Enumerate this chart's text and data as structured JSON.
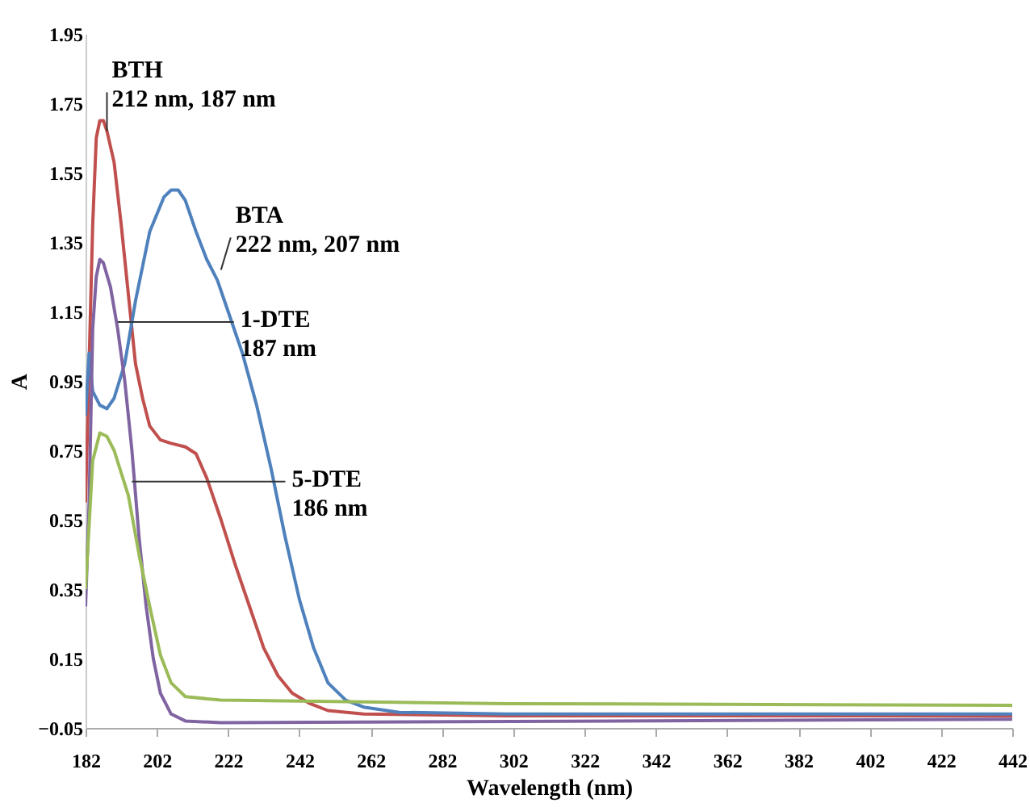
{
  "chart_data": {
    "type": "line",
    "xlabel": "Wavelength (nm)",
    "ylabel": "A",
    "xlim": [
      182,
      442
    ],
    "xticks": [
      182,
      202,
      222,
      242,
      262,
      282,
      302,
      322,
      342,
      362,
      382,
      402,
      422,
      442
    ],
    "ylim": [
      -0.05,
      1.95
    ],
    "yticks": [
      -0.05,
      0.15,
      0.35,
      0.55,
      0.75,
      0.95,
      1.15,
      1.35,
      1.55,
      1.75,
      1.95
    ],
    "grid": false,
    "marker": "none",
    "line_style": "solid",
    "series": [
      {
        "color": "#c0504d",
        "x": [
          182,
          184,
          185,
          186,
          187,
          188,
          190,
          192,
          194,
          196,
          198,
          200,
          203,
          206,
          210,
          213,
          216,
          220,
          224,
          228,
          232,
          236,
          240,
          245,
          250,
          260,
          300,
          442
        ],
        "values": [
          0.6,
          1.4,
          1.65,
          1.7,
          1.7,
          1.67,
          1.58,
          1.4,
          1.2,
          1.0,
          0.9,
          0.82,
          0.78,
          0.77,
          0.76,
          0.74,
          0.67,
          0.55,
          0.42,
          0.3,
          0.18,
          0.1,
          0.05,
          0.02,
          0.0,
          -0.01,
          -0.015,
          -0.015
        ]
      },
      {
        "color": "#4f81bd",
        "x": [
          182,
          183,
          184,
          186,
          188,
          190,
          193,
          196,
          200,
          204,
          206,
          208,
          210,
          213,
          216,
          219,
          222,
          226,
          230,
          234,
          238,
          242,
          246,
          250,
          255,
          260,
          270,
          300,
          442
        ],
        "values": [
          0.85,
          1.03,
          0.92,
          0.88,
          0.87,
          0.9,
          1.0,
          1.18,
          1.38,
          1.48,
          1.5,
          1.5,
          1.47,
          1.38,
          1.3,
          1.24,
          1.15,
          1.03,
          0.88,
          0.7,
          0.5,
          0.32,
          0.18,
          0.08,
          0.03,
          0.01,
          -0.005,
          -0.01,
          -0.01
        ]
      },
      {
        "color": "#8064a2",
        "x": [
          182,
          183,
          184,
          185,
          186,
          187,
          189,
          191,
          193,
          195,
          197,
          199,
          201,
          203,
          206,
          210,
          220,
          442
        ],
        "values": [
          0.3,
          0.6,
          1.1,
          1.25,
          1.3,
          1.29,
          1.22,
          1.1,
          0.95,
          0.75,
          0.5,
          0.3,
          0.15,
          0.05,
          -0.01,
          -0.03,
          -0.035,
          -0.025
        ]
      },
      {
        "color": "#9bbb59",
        "x": [
          182,
          184,
          186,
          188,
          190,
          194,
          197,
          200,
          203,
          206,
          210,
          220,
          300,
          442
        ],
        "values": [
          0.35,
          0.72,
          0.8,
          0.79,
          0.75,
          0.62,
          0.45,
          0.3,
          0.16,
          0.08,
          0.04,
          0.03,
          0.02,
          0.015
        ]
      }
    ],
    "annotations": [
      {
        "text": "BTH\n212 nm, 187 nm",
        "x": 188,
        "y": 1.67
      },
      {
        "text": "BTA\n222 nm, 207 nm",
        "x": 220,
        "y": 1.27
      },
      {
        "text": "1-DTE\n187 nm",
        "x": 191,
        "y": 1.12
      },
      {
        "text": "5-DTE\n186 nm",
        "x": 195,
        "y": 0.66
      }
    ]
  }
}
